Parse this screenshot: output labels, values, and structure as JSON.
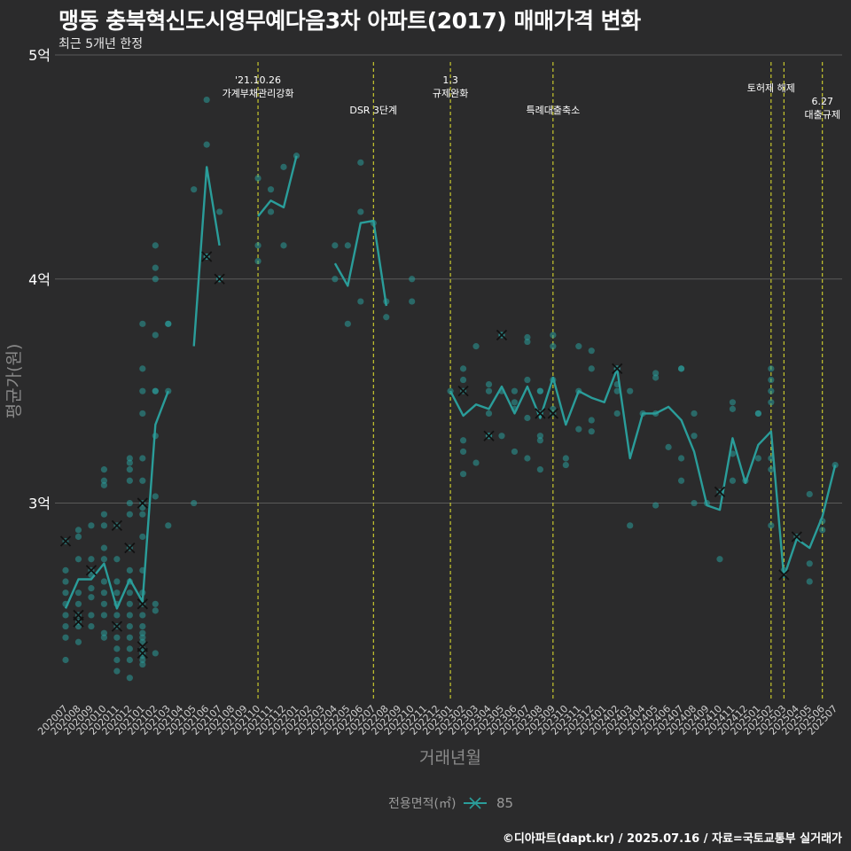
{
  "header": {
    "title": "맹동 충북혁신도시영무예다음3차 아파트(2017) 매매가격 변화",
    "subtitle": "최근 5개년 한정"
  },
  "footer": {
    "credit": "©디아파트(dapt.kr) / 2025.07.16 / 자료=국토교통부 실거래가"
  },
  "colors": {
    "background": "#2b2b2c",
    "series": "#2a9d9a",
    "annotation_line": "#e6e62e",
    "grid": "#5a5a5a"
  },
  "chart_data": {
    "type": "line",
    "xlabel": "거래년월",
    "ylabel": "평균가(원)",
    "ylim": [
      2.12,
      5.0
    ],
    "y_ticks": [
      {
        "value": 3,
        "label": "3억"
      },
      {
        "value": 4,
        "label": "4억"
      },
      {
        "value": 5,
        "label": "5억"
      }
    ],
    "x_months": [
      "202007",
      "202008",
      "202009",
      "202010",
      "202011",
      "202012",
      "202101",
      "202102",
      "202103",
      "202104",
      "202105",
      "202106",
      "202107",
      "202108",
      "202109",
      "202110",
      "202111",
      "202112",
      "202201",
      "202202",
      "202203",
      "202204",
      "202205",
      "202206",
      "202207",
      "202208",
      "202209",
      "202210",
      "202211",
      "202212",
      "202301",
      "202302",
      "202303",
      "202304",
      "202305",
      "202306",
      "202307",
      "202308",
      "202309",
      "202310",
      "202311",
      "202312",
      "202401",
      "202402",
      "202403",
      "202404",
      "202405",
      "202406",
      "202407",
      "202408",
      "202409",
      "202410",
      "202411",
      "202412",
      "202501",
      "202502",
      "202503",
      "202504",
      "202505",
      "202506",
      "202507"
    ],
    "legend": {
      "title": "전용면적(㎡)",
      "position": "bottom",
      "entries": [
        "85"
      ]
    },
    "series": [
      {
        "name": "85",
        "values": [
          2.53,
          2.66,
          2.66,
          2.73,
          2.53,
          2.66,
          2.56,
          3.35,
          3.5,
          null,
          3.7,
          4.5,
          4.15,
          null,
          null,
          4.28,
          4.35,
          4.32,
          4.55,
          null,
          null,
          4.07,
          3.97,
          4.25,
          4.26,
          3.88,
          null,
          null,
          null,
          null,
          3.5,
          3.39,
          3.44,
          3.42,
          3.52,
          3.4,
          3.52,
          3.38,
          3.56,
          3.35,
          3.5,
          3.47,
          3.45,
          3.6,
          3.2,
          3.4,
          3.4,
          3.43,
          3.37,
          3.23,
          2.99,
          2.97,
          3.29,
          3.09,
          3.26,
          3.32,
          2.67,
          2.84,
          2.8,
          2.94,
          3.17
        ]
      }
    ],
    "scatter_points": [
      [
        "202007",
        [
          2.83,
          2.7,
          2.6,
          2.5,
          2.45,
          2.4,
          2.3,
          2.55,
          2.65
        ]
      ],
      [
        "202008",
        [
          2.88,
          2.85,
          2.75,
          2.6,
          2.55,
          2.5,
          2.47,
          2.45,
          2.38
        ]
      ],
      [
        "202009",
        [
          2.9,
          2.75,
          2.7,
          2.68,
          2.62,
          2.58,
          2.5,
          2.45
        ]
      ],
      [
        "202010",
        [
          3.15,
          3.1,
          3.08,
          2.95,
          2.9,
          2.8,
          2.75,
          2.65,
          2.6,
          2.55,
          2.5,
          2.42,
          2.4
        ]
      ],
      [
        "202011",
        [
          2.9,
          2.75,
          2.65,
          2.6,
          2.55,
          2.5,
          2.45,
          2.4,
          2.35,
          2.3,
          2.25
        ]
      ],
      [
        "202012",
        [
          3.2,
          3.18,
          3.15,
          3.1,
          3.0,
          2.95,
          2.8,
          2.7,
          2.65,
          2.6,
          2.55,
          2.5,
          2.45,
          2.4,
          2.35,
          2.3,
          2.22
        ]
      ],
      [
        "202101",
        [
          3.8,
          3.6,
          3.5,
          3.4,
          3.2,
          3.1,
          3.0,
          2.98,
          2.95,
          2.85,
          2.7,
          2.6,
          2.55,
          2.5,
          2.45,
          2.42,
          2.4,
          2.38,
          2.35,
          2.33,
          2.32,
          2.3,
          2.28
        ]
      ],
      [
        "202102",
        [
          4.15,
          4.05,
          4.0,
          3.75,
          3.5,
          3.5,
          3.3,
          3.03,
          2.55,
          2.52,
          2.33
        ]
      ],
      [
        "202103",
        [
          3.8,
          3.8,
          3.5,
          2.9
        ]
      ],
      [
        "202105",
        [
          4.4,
          3.0
        ]
      ],
      [
        "202106",
        [
          4.8,
          4.6,
          4.1,
          4.1
        ]
      ],
      [
        "202107",
        [
          4.3,
          4.0,
          4.0
        ]
      ],
      [
        "202110",
        [
          4.45,
          4.15,
          4.08
        ]
      ],
      [
        "202111",
        [
          4.4,
          4.3
        ]
      ],
      [
        "202112",
        [
          4.5,
          4.15
        ]
      ],
      [
        "202201",
        [
          4.55
        ]
      ],
      [
        "202204",
        [
          4.15,
          4.0
        ]
      ],
      [
        "202205",
        [
          4.15,
          3.8
        ]
      ],
      [
        "202206",
        [
          4.52,
          4.3,
          3.9
        ]
      ],
      [
        "202207",
        [
          4.25
        ]
      ],
      [
        "202208",
        [
          3.9,
          3.83
        ]
      ],
      [
        "202210",
        [
          4.0,
          3.9
        ]
      ],
      [
        "202301",
        [
          3.5
        ]
      ],
      [
        "202302",
        [
          3.6,
          3.55,
          3.5,
          3.28,
          3.23,
          3.13
        ]
      ],
      [
        "202303",
        [
          3.7,
          3.18
        ]
      ],
      [
        "202304",
        [
          3.53,
          3.5,
          3.4,
          3.3,
          3.3
        ]
      ],
      [
        "202305",
        [
          3.75,
          3.75,
          3.5,
          3.3
        ]
      ],
      [
        "202306",
        [
          3.5,
          3.45,
          3.42,
          3.23
        ]
      ],
      [
        "202307",
        [
          3.74,
          3.72,
          3.55,
          3.38,
          3.2
        ]
      ],
      [
        "202308",
        [
          3.5,
          3.5,
          3.4,
          3.3,
          3.28,
          3.15
        ]
      ],
      [
        "202309",
        [
          3.75,
          3.7,
          3.55,
          3.42,
          3.4
        ]
      ],
      [
        "202310",
        [
          3.2,
          3.17
        ]
      ],
      [
        "202311",
        [
          3.7,
          3.5,
          3.33
        ]
      ],
      [
        "202312",
        [
          3.68,
          3.6,
          3.37,
          3.32
        ]
      ],
      [
        "202402",
        [
          3.6,
          3.6,
          3.53,
          3.5,
          3.4
        ]
      ],
      [
        "202403",
        [
          3.5,
          2.9
        ]
      ],
      [
        "202404",
        [
          3.4
        ]
      ],
      [
        "202405",
        [
          3.58,
          3.56,
          3.4,
          2.99
        ]
      ],
      [
        "202406",
        [
          3.25
        ]
      ],
      [
        "202407",
        [
          3.6,
          3.6,
          3.2,
          3.1
        ]
      ],
      [
        "202408",
        [
          3.4,
          3.3,
          3.0
        ]
      ],
      [
        "202409",
        [
          3.0
        ]
      ],
      [
        "202410",
        [
          3.05,
          2.75
        ]
      ],
      [
        "202411",
        [
          3.45,
          3.42,
          3.22,
          3.1
        ]
      ],
      [
        "202412",
        [
          3.1
        ]
      ],
      [
        "202501",
        [
          3.4,
          3.4,
          3.2
        ]
      ],
      [
        "202502",
        [
          3.6,
          3.55,
          3.5,
          3.45,
          3.2,
          3.15,
          2.9
        ]
      ],
      [
        "202503",
        [
          2.7
        ]
      ],
      [
        "202504",
        [
          2.85
        ]
      ],
      [
        "202505",
        [
          3.04,
          2.73,
          2.65
        ]
      ],
      [
        "202506",
        [
          2.92,
          2.88
        ]
      ],
      [
        "202507",
        [
          3.17
        ]
      ]
    ],
    "cross_points": [
      [
        "202007",
        2.83
      ],
      [
        "202008",
        2.5
      ],
      [
        "202008",
        2.47
      ],
      [
        "202009",
        2.7
      ],
      [
        "202011",
        2.9
      ],
      [
        "202011",
        2.45
      ],
      [
        "202012",
        2.8
      ],
      [
        "202101",
        3.0
      ],
      [
        "202101",
        2.55
      ],
      [
        "202101",
        2.36
      ],
      [
        "202101",
        2.33
      ],
      [
        "202106",
        4.1
      ],
      [
        "202107",
        4.0
      ],
      [
        "202302",
        3.5
      ],
      [
        "202304",
        3.3
      ],
      [
        "202305",
        3.75
      ],
      [
        "202308",
        3.4
      ],
      [
        "202309",
        3.4
      ],
      [
        "202402",
        3.6
      ],
      [
        "202410",
        3.05
      ],
      [
        "202503",
        2.68
      ],
      [
        "202504",
        2.85
      ]
    ],
    "annotations": [
      {
        "month": "202110",
        "lines": [
          "'21.10.26",
          "가계부채관리강화"
        ],
        "level": 1
      },
      {
        "month": "202207",
        "lines": [
          "DSR 3단계"
        ],
        "level": 3
      },
      {
        "month": "202301",
        "lines": [
          "1.3",
          "규제완화"
        ],
        "level": 1
      },
      {
        "month": "202309",
        "lines": [
          "특례대출축소"
        ],
        "level": 3
      },
      {
        "month": "202502",
        "lines": [
          "토허제 해제"
        ],
        "level": 2
      },
      {
        "month": "202503",
        "lines": [],
        "level": 0
      },
      {
        "month": "202506",
        "lines": [
          "6.27",
          "대출규제"
        ],
        "level": 3
      }
    ]
  }
}
